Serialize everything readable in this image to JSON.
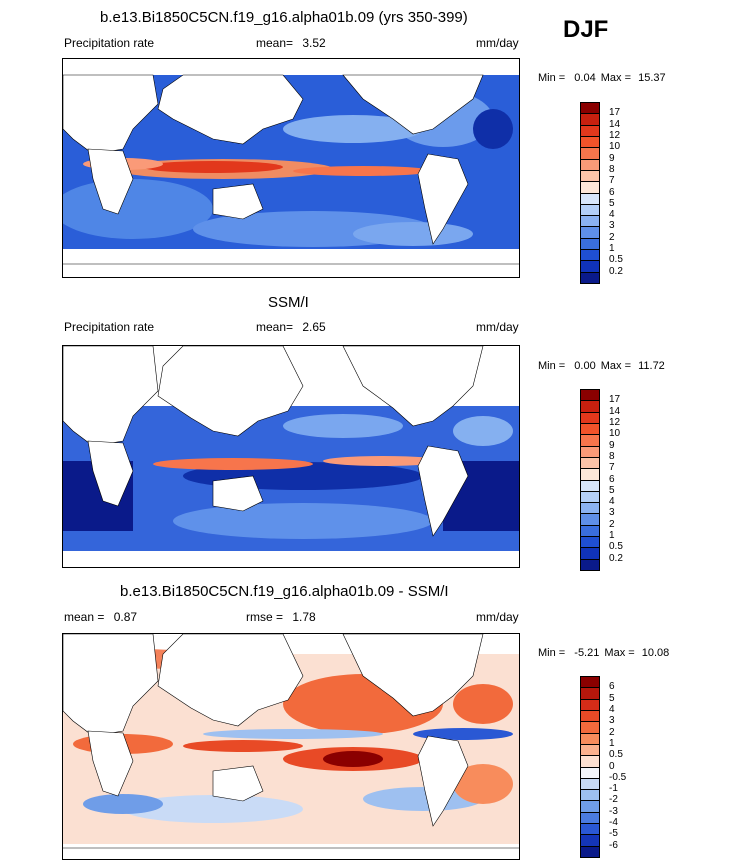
{
  "season": "DJF",
  "panels": [
    {
      "title": "b.e13.Bi1850C5CN.f19_g16.alpha01b.09 (yrs 350-399)",
      "left_label": "Precipitation rate",
      "center_label": "mean=",
      "center_value": "3.52",
      "units": "mm/day",
      "min_label": "Min =",
      "min_value": "0.04",
      "max_label": "Max =",
      "max_value": "15.37",
      "colorbar": {
        "labels": [
          "17",
          "14",
          "12",
          "10",
          "9",
          "8",
          "7",
          "6",
          "5",
          "4",
          "3",
          "2",
          "1",
          "0.5",
          "0.2"
        ],
        "colors": [
          "#8a0000",
          "#c8200f",
          "#e2381c",
          "#f2532a",
          "#f7754c",
          "#fa9a78",
          "#fcc3a8",
          "#fde7d8",
          "#d7e6fb",
          "#b3cff8",
          "#8bb2f2",
          "#5f8fe8",
          "#3a6ede",
          "#1f4fd2",
          "#1033b8",
          "#0a1a8a"
        ]
      }
    },
    {
      "title": "SSM/I",
      "left_label": "Precipitation rate",
      "center_label": "mean=",
      "center_value": "2.65",
      "units": "mm/day",
      "min_label": "Min =",
      "min_value": "0.00",
      "max_label": "Max =",
      "max_value": "11.72",
      "colorbar": {
        "labels": [
          "17",
          "14",
          "12",
          "10",
          "9",
          "8",
          "7",
          "6",
          "5",
          "4",
          "3",
          "2",
          "1",
          "0.5",
          "0.2"
        ],
        "colors": [
          "#8a0000",
          "#c8200f",
          "#e2381c",
          "#f2532a",
          "#f7754c",
          "#fa9a78",
          "#fcc3a8",
          "#fde7d8",
          "#d7e6fb",
          "#b3cff8",
          "#8bb2f2",
          "#5f8fe8",
          "#3a6ede",
          "#1f4fd2",
          "#1033b8",
          "#0a1a8a"
        ]
      }
    },
    {
      "title": "b.e13.Bi1850C5CN.f19_g16.alpha01b.09 - SSM/I",
      "left_label": "mean =",
      "left_value": "0.87",
      "center_label": "rmse =",
      "center_value": "1.78",
      "units": "mm/day",
      "min_label": "Min =",
      "min_value": "-5.21",
      "max_label": "Max =",
      "max_value": "10.08",
      "colorbar": {
        "labels": [
          "6",
          "5",
          "4",
          "3",
          "2",
          "1",
          "0.5",
          "0",
          "-0.5",
          "-1",
          "-2",
          "-3",
          "-4",
          "-5",
          "-6"
        ],
        "colors": [
          "#8a0000",
          "#b5170c",
          "#d42c18",
          "#e84a26",
          "#f26a3c",
          "#f88c5c",
          "#fbb18e",
          "#fde1d2",
          "#f4f6fb",
          "#c9dbf6",
          "#9ec0f0",
          "#6f9de8",
          "#4a7be0",
          "#2a58d4",
          "#1435b8",
          "#0a1a8a"
        ]
      }
    }
  ],
  "icons": {
    "map": "world-map-icon",
    "colorbar": "colorbar-icon"
  }
}
